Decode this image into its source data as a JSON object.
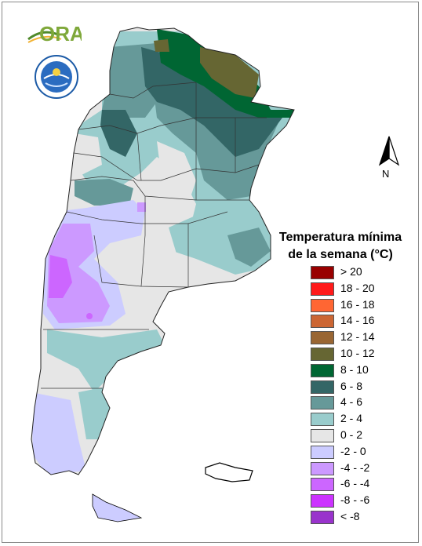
{
  "logo": {
    "text": "ORA"
  },
  "north_arrow": {
    "label": "N"
  },
  "legend": {
    "title_line1": "Temperatura mínima",
    "title_line2": "de la semana (°C)",
    "classes": [
      {
        "label": "> 20",
        "color": "#990000"
      },
      {
        "label": "18 - 20",
        "color": "#ff1a1a"
      },
      {
        "label": "16 - 18",
        "color": "#ff6633"
      },
      {
        "label": "14 - 16",
        "color": "#cc6633"
      },
      {
        "label": "12 - 14",
        "color": "#996633"
      },
      {
        "label": "10 - 12",
        "color": "#666633"
      },
      {
        "label": "8 - 10",
        "color": "#006633"
      },
      {
        "label": "6 - 8",
        "color": "#336666"
      },
      {
        "label": "4 - 6",
        "color": "#669999"
      },
      {
        "label": "2 - 4",
        "color": "#99cccc"
      },
      {
        "label": "0 - 2",
        "color": "#e6e6e6"
      },
      {
        "label": "-2 - 0",
        "color": "#ccccff"
      },
      {
        "label": "-4 - -2",
        "color": "#cc99ff"
      },
      {
        "label": "-6 - -4",
        "color": "#cc66ff"
      },
      {
        "label": "-8 - -6",
        "color": "#cc33ff"
      },
      {
        "label": "< -8",
        "color": "#9933cc"
      }
    ]
  }
}
